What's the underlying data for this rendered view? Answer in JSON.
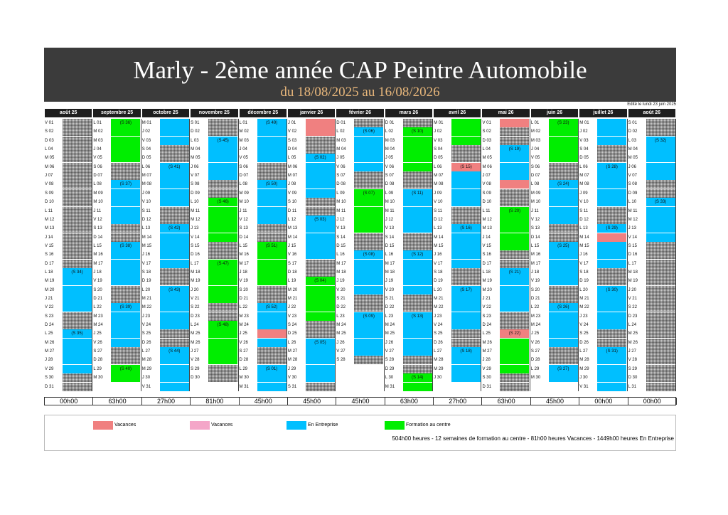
{
  "title": "Marly - 2ème année CAP Peintre Automobile",
  "subtitle": "du 18/08/2025 au 16/08/2026",
  "edit_date": "Edité le lundi 23 juin 2025",
  "colors": {
    "vacances": "#f08080",
    "vacances2": "#f4a6c8",
    "entreprise": "#00bfff",
    "formation": "#00ee00"
  },
  "months": [
    {
      "name": "août 25",
      "first_dow": 5,
      "days": 31,
      "ent": [],
      "form": [],
      "vac": [],
      "weeks": [
        [
          18,
          "(S 34)"
        ],
        [
          25,
          "(S 35)"
        ]
      ],
      "hatch_from": 18
    },
    {
      "name": "septembre 25",
      "first_dow": 1,
      "days": 30,
      "ent": [],
      "form": [],
      "vac": [],
      "weeks": [
        [
          1,
          "(S 36)"
        ],
        [
          8,
          "(S 37)"
        ],
        [
          15,
          "(S 38)"
        ],
        [
          22,
          "(S 39)"
        ],
        [
          29,
          "(S 40)"
        ]
      ]
    },
    {
      "name": "octobre 25",
      "first_dow": 3,
      "days": 31,
      "ent": [],
      "form": [],
      "vac": [],
      "weeks": [
        [
          6,
          "(S 41)"
        ],
        [
          13,
          "(S 42)"
        ],
        [
          20,
          "(S 43)"
        ],
        [
          27,
          "(S 44)"
        ]
      ]
    },
    {
      "name": "novembre 25",
      "first_dow": 6,
      "days": 30,
      "ent": [],
      "form": [],
      "vac": [],
      "weeks": [
        [
          3,
          "(S 45)"
        ],
        [
          10,
          "(S 46)"
        ],
        [
          17,
          "(S 47)"
        ],
        [
          24,
          "(S 48)"
        ]
      ]
    },
    {
      "name": "décembre 25",
      "first_dow": 1,
      "days": 31,
      "ent": [],
      "form": [],
      "vac": [],
      "weeks": [
        [
          1,
          "(S 49)"
        ],
        [
          8,
          "(S 50)"
        ],
        [
          15,
          "(S 51)"
        ],
        [
          22,
          "(S 52)"
        ],
        [
          29,
          "(S 01)"
        ]
      ]
    },
    {
      "name": "janvier 26",
      "first_dow": 4,
      "days": 31,
      "ent": [],
      "form": [],
      "vac": [],
      "weeks": [
        [
          5,
          "(S 02)"
        ],
        [
          12,
          "(S 03)"
        ],
        [
          19,
          "(S 04)"
        ],
        [
          26,
          "(S 05)"
        ]
      ]
    },
    {
      "name": "février 26",
      "first_dow": 0,
      "days": 28,
      "ent": [],
      "form": [],
      "vac": [],
      "weeks": [
        [
          2,
          "(S 06)"
        ],
        [
          9,
          "(S 07)"
        ],
        [
          16,
          "(S 08)"
        ],
        [
          23,
          "(S 09)"
        ]
      ]
    },
    {
      "name": "mars 26",
      "first_dow": 0,
      "days": 31,
      "ent": [],
      "form": [],
      "vac": [],
      "weeks": [
        [
          2,
          "(S 10)"
        ],
        [
          9,
          "(S 11)"
        ],
        [
          16,
          "(S 12)"
        ],
        [
          23,
          "(S 13)"
        ],
        [
          30,
          "(S 14)"
        ]
      ]
    },
    {
      "name": "avril 26",
      "first_dow": 3,
      "days": 30,
      "ent": [],
      "form": [],
      "vac": [],
      "weeks": [
        [
          6,
          "(S 15)"
        ],
        [
          13,
          "(S 16)"
        ],
        [
          20,
          "(S 17)"
        ],
        [
          27,
          "(S 18)"
        ]
      ]
    },
    {
      "name": "mai 26",
      "first_dow": 5,
      "days": 31,
      "ent": [],
      "form": [],
      "vac": [],
      "weeks": [
        [
          4,
          "(S 19)"
        ],
        [
          11,
          "(S 20)"
        ],
        [
          18,
          "(S 21)"
        ],
        [
          25,
          "(S 22)"
        ]
      ]
    },
    {
      "name": "juin 26",
      "first_dow": 1,
      "days": 30,
      "ent": [],
      "form": [],
      "vac": [],
      "weeks": [
        [
          1,
          "(S 23)"
        ],
        [
          8,
          "(S 24)"
        ],
        [
          15,
          "(S 25)"
        ],
        [
          22,
          "(S 26)"
        ],
        [
          29,
          "(S 27)"
        ]
      ]
    },
    {
      "name": "juillet 26",
      "first_dow": 3,
      "days": 31,
      "ent": [],
      "form": [],
      "vac": [],
      "weeks": [
        [
          6,
          "(S 28)"
        ],
        [
          13,
          "(S 29)"
        ],
        [
          20,
          "(S 30)"
        ],
        [
          27,
          "(S 31)"
        ]
      ]
    },
    {
      "name": "août 26",
      "first_dow": 6,
      "days": 31,
      "ent": [],
      "form": [],
      "vac": [],
      "weeks": [
        [
          3,
          "(S 32)"
        ],
        [
          10,
          "(S 33)"
        ]
      ],
      "hatch_after": 16
    }
  ],
  "weekday_letters": [
    "D",
    "L",
    "M",
    "M",
    "J",
    "V",
    "S"
  ],
  "month_hours": [
    "00h00",
    "63h00",
    "27h00",
    "81h00",
    "45h00",
    "45h00",
    "45h00",
    "63h00",
    "27h00",
    "63h00",
    "45h00",
    "00h00",
    "00h00"
  ],
  "legend": [
    {
      "label": "Vacances",
      "color": "#f08080"
    },
    {
      "label": "Vacances",
      "color": "#f4a6c8"
    },
    {
      "label": "En Entreprise",
      "color": "#00bfff"
    },
    {
      "label": "Formation au centre",
      "color": "#00ee00"
    }
  ],
  "summary": "504h00 heures - 12 semaines de formation au centre - 81h00 heures Vacances - 1449h00 heures En Entreprise"
}
